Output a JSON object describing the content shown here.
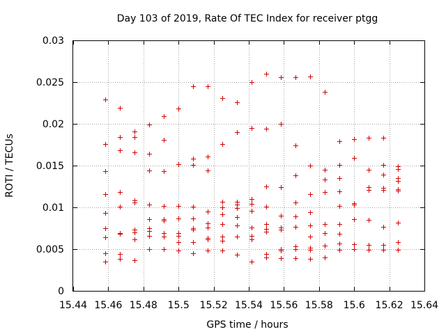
{
  "chart_data": {
    "type": "scatter",
    "title": "Day 103 of 2019, Rate Of TEC Index for receiver ptgg",
    "xlabel": "GPS time / hours",
    "ylabel": "ROTI / TECUs",
    "xlim": [
      15.44,
      15.64
    ],
    "ylim": [
      0,
      0.03
    ],
    "xticks": [
      "15.44",
      "15.46",
      "15.48",
      "15.5",
      "15.52",
      "15.54",
      "15.56",
      "15.58",
      "15.6",
      "15.62",
      "15.64"
    ],
    "yticks": [
      "0",
      "0.005",
      "0.01",
      "0.015",
      "0.02",
      "0.025",
      "0.03"
    ],
    "grid": true,
    "marker": "+",
    "color": "#d00000",
    "series": [
      {
        "name": "ROTI",
        "points": [
          [
            15.4583,
            0.0229
          ],
          [
            15.4583,
            0.0176
          ],
          [
            15.4583,
            0.0143
          ],
          [
            15.4583,
            0.0116
          ],
          [
            15.4583,
            0.0093
          ],
          [
            15.4583,
            0.0075
          ],
          [
            15.4583,
            0.0064
          ],
          [
            15.4583,
            0.0045
          ],
          [
            15.4583,
            0.0035
          ],
          [
            15.4667,
            0.0219
          ],
          [
            15.4667,
            0.0184
          ],
          [
            15.4667,
            0.0168
          ],
          [
            15.4667,
            0.0118
          ],
          [
            15.4667,
            0.0101
          ],
          [
            15.4667,
            0.0069
          ],
          [
            15.4667,
            0.0068
          ],
          [
            15.4667,
            0.0044
          ],
          [
            15.4667,
            0.0038
          ],
          [
            15.475,
            0.0191
          ],
          [
            15.475,
            0.0184
          ],
          [
            15.475,
            0.0166
          ],
          [
            15.475,
            0.0108
          ],
          [
            15.475,
            0.0106
          ],
          [
            15.475,
            0.0073
          ],
          [
            15.475,
            0.007
          ],
          [
            15.475,
            0.0062
          ],
          [
            15.475,
            0.0037
          ],
          [
            15.4833,
            0.0199
          ],
          [
            15.4833,
            0.0164
          ],
          [
            15.4833,
            0.0144
          ],
          [
            15.4833,
            0.0103
          ],
          [
            15.4833,
            0.0086
          ],
          [
            15.4833,
            0.0075
          ],
          [
            15.4833,
            0.0072
          ],
          [
            15.4833,
            0.0066
          ],
          [
            15.4833,
            0.005
          ],
          [
            15.4917,
            0.0209
          ],
          [
            15.4917,
            0.0181
          ],
          [
            15.4917,
            0.0143
          ],
          [
            15.4917,
            0.0102
          ],
          [
            15.4917,
            0.0086
          ],
          [
            15.4917,
            0.0084
          ],
          [
            15.4917,
            0.0069
          ],
          [
            15.4917,
            0.0065
          ],
          [
            15.4917,
            0.005
          ],
          [
            15.5,
            0.0218
          ],
          [
            15.5,
            0.0152
          ],
          [
            15.5,
            0.0102
          ],
          [
            15.5,
            0.0087
          ],
          [
            15.5,
            0.0069
          ],
          [
            15.5,
            0.0066
          ],
          [
            15.5,
            0.0058
          ],
          [
            15.5,
            0.0048
          ],
          [
            15.5083,
            0.0245
          ],
          [
            15.5083,
            0.0158
          ],
          [
            15.5083,
            0.0151
          ],
          [
            15.5083,
            0.0101
          ],
          [
            15.5083,
            0.0087
          ],
          [
            15.5083,
            0.0075
          ],
          [
            15.5083,
            0.0073
          ],
          [
            15.5083,
            0.0058
          ],
          [
            15.5083,
            0.0045
          ],
          [
            15.5167,
            0.0245
          ],
          [
            15.5167,
            0.0161
          ],
          [
            15.5167,
            0.0144
          ],
          [
            15.5167,
            0.0095
          ],
          [
            15.5167,
            0.0081
          ],
          [
            15.5167,
            0.0076
          ],
          [
            15.5167,
            0.0063
          ],
          [
            15.5167,
            0.0062
          ],
          [
            15.5167,
            0.0048
          ],
          [
            15.525,
            0.0231
          ],
          [
            15.525,
            0.0176
          ],
          [
            15.525,
            0.0107
          ],
          [
            15.525,
            0.01
          ],
          [
            15.525,
            0.0092
          ],
          [
            15.525,
            0.008
          ],
          [
            15.525,
            0.0065
          ],
          [
            15.525,
            0.006
          ],
          [
            15.525,
            0.0048
          ],
          [
            15.5333,
            0.0226
          ],
          [
            15.5333,
            0.019
          ],
          [
            15.5333,
            0.0107
          ],
          [
            15.5333,
            0.0103
          ],
          [
            15.5333,
            0.0099
          ],
          [
            15.5333,
            0.0088
          ],
          [
            15.5333,
            0.0078
          ],
          [
            15.5333,
            0.0065
          ],
          [
            15.5333,
            0.0043
          ],
          [
            15.5417,
            0.025
          ],
          [
            15.5417,
            0.0195
          ],
          [
            15.5417,
            0.011
          ],
          [
            15.5417,
            0.0104
          ],
          [
            15.5417,
            0.0096
          ],
          [
            15.5417,
            0.0076
          ],
          [
            15.5417,
            0.0066
          ],
          [
            15.5417,
            0.0062
          ],
          [
            15.5417,
            0.0035
          ],
          [
            15.55,
            0.026
          ],
          [
            15.55,
            0.0194
          ],
          [
            15.55,
            0.0125
          ],
          [
            15.55,
            0.0101
          ],
          [
            15.55,
            0.008
          ],
          [
            15.55,
            0.0074
          ],
          [
            15.55,
            0.0071
          ],
          [
            15.55,
            0.0044
          ],
          [
            15.55,
            0.004
          ],
          [
            15.5583,
            0.0256
          ],
          [
            15.5583,
            0.02
          ],
          [
            15.5583,
            0.0124
          ],
          [
            15.5583,
            0.009
          ],
          [
            15.5583,
            0.0076
          ],
          [
            15.5583,
            0.0073
          ],
          [
            15.5583,
            0.005
          ],
          [
            15.5583,
            0.0048
          ],
          [
            15.5583,
            0.0039
          ],
          [
            15.5667,
            0.0256
          ],
          [
            15.5667,
            0.0174
          ],
          [
            15.5667,
            0.0138
          ],
          [
            15.5667,
            0.0106
          ],
          [
            15.5667,
            0.0089
          ],
          [
            15.5667,
            0.0077
          ],
          [
            15.5667,
            0.0053
          ],
          [
            15.5667,
            0.005
          ],
          [
            15.5667,
            0.0039
          ],
          [
            15.575,
            0.0257
          ],
          [
            15.575,
            0.015
          ],
          [
            15.575,
            0.0116
          ],
          [
            15.575,
            0.0094
          ],
          [
            15.575,
            0.0078
          ],
          [
            15.575,
            0.0065
          ],
          [
            15.575,
            0.0052
          ],
          [
            15.575,
            0.0049
          ],
          [
            15.575,
            0.0038
          ],
          [
            15.5833,
            0.0238
          ],
          [
            15.5833,
            0.0145
          ],
          [
            15.5833,
            0.0133
          ],
          [
            15.5833,
            0.0118
          ],
          [
            15.5833,
            0.008
          ],
          [
            15.5833,
            0.0069
          ],
          [
            15.5833,
            0.0054
          ],
          [
            15.5833,
            0.004
          ],
          [
            15.5917,
            0.0179
          ],
          [
            15.5917,
            0.0151
          ],
          [
            15.5917,
            0.0135
          ],
          [
            15.5917,
            0.0119
          ],
          [
            15.5917,
            0.0102
          ],
          [
            15.5917,
            0.008
          ],
          [
            15.5917,
            0.0068
          ],
          [
            15.5917,
            0.0057
          ],
          [
            15.5917,
            0.0049
          ],
          [
            15.6,
            0.0182
          ],
          [
            15.6,
            0.0159
          ],
          [
            15.6,
            0.0105
          ],
          [
            15.6,
            0.0103
          ],
          [
            15.6,
            0.0086
          ],
          [
            15.6,
            0.0056
          ],
          [
            15.6,
            0.005
          ],
          [
            15.6083,
            0.0183
          ],
          [
            15.6083,
            0.0145
          ],
          [
            15.6083,
            0.0124
          ],
          [
            15.6083,
            0.0121
          ],
          [
            15.6083,
            0.0085
          ],
          [
            15.6083,
            0.0055
          ],
          [
            15.6083,
            0.0049
          ],
          [
            15.6167,
            0.0183
          ],
          [
            15.6167,
            0.0151
          ],
          [
            15.6167,
            0.0139
          ],
          [
            15.6167,
            0.0123
          ],
          [
            15.6167,
            0.0121
          ],
          [
            15.6167,
            0.0077
          ],
          [
            15.6167,
            0.0055
          ],
          [
            15.6167,
            0.0049
          ],
          [
            15.625,
            0.0149
          ],
          [
            15.625,
            0.0146
          ],
          [
            15.625,
            0.0135
          ],
          [
            15.625,
            0.0132
          ],
          [
            15.625,
            0.0122
          ],
          [
            15.625,
            0.012
          ],
          [
            15.625,
            0.0082
          ],
          [
            15.625,
            0.0058
          ],
          [
            15.625,
            0.0049
          ]
        ]
      }
    ]
  }
}
